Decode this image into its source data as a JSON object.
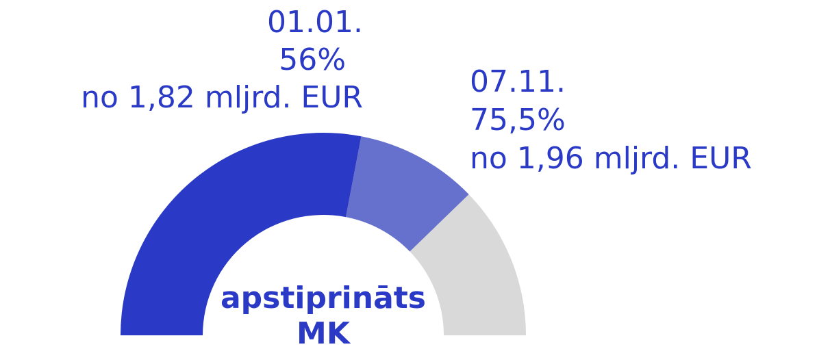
{
  "chart_data": {
    "type": "gauge",
    "categories": [
      "01.01.",
      "07.11."
    ],
    "values": [
      56,
      75.5
    ],
    "value_labels": [
      "56%",
      "75,5%"
    ],
    "totals": [
      "no 1,82 mljrd. EUR",
      "no 1,96 mljrd. EUR"
    ],
    "colors": [
      "#2a3ac6",
      "#6670cd"
    ],
    "track_color": "#d9d9d9",
    "ylim": [
      0,
      100
    ],
    "label": [
      "apstiprināts",
      "MK"
    ],
    "text_color": "#2a3ac6"
  }
}
